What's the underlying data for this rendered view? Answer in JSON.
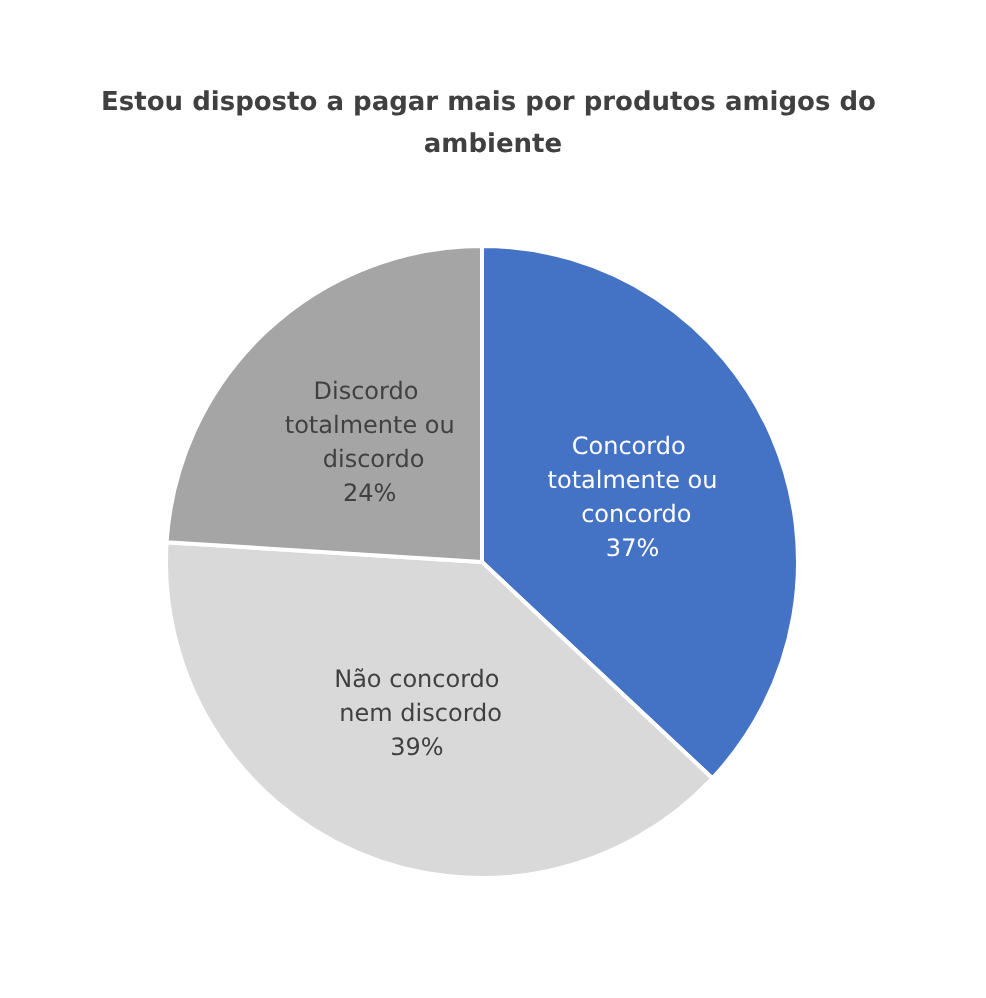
{
  "chart_data": {
    "type": "pie",
    "title": "Estou disposto a pagar mais por produtos amigos do ambiente",
    "categories": [
      "Concordo totalmente ou concordo",
      "Não concordo nem discordo",
      "Discordo totalmente ou discordo"
    ],
    "values": [
      37,
      39,
      24
    ],
    "colors": [
      "#4472c4",
      "#d9d9d9",
      "#a5a5a5"
    ],
    "value_labels": [
      "37%",
      "39%",
      "24%"
    ],
    "legend": false
  }
}
